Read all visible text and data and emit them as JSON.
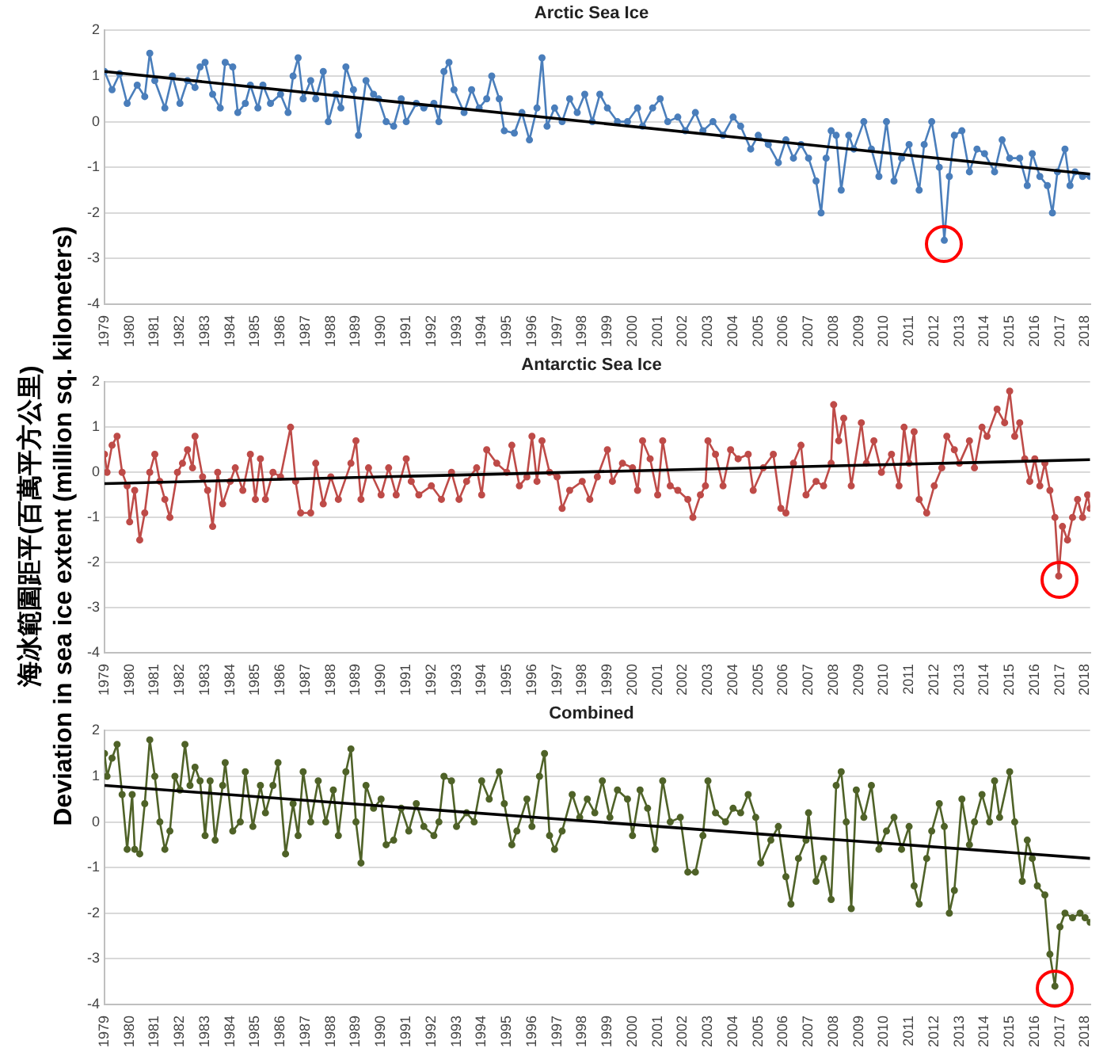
{
  "chart_data": [
    {
      "type": "line",
      "title": "Arctic Sea Ice",
      "ylabel": "海冰範圍距平(百萬平方公里)\nDeviation in sea ice extent (million sq. kilometers)",
      "xlim": [
        1979,
        2018.2
      ],
      "xticks": [
        1979,
        1980,
        1981,
        1982,
        1983,
        1984,
        1985,
        1986,
        1987,
        1988,
        1989,
        1990,
        1991,
        1992,
        1993,
        1994,
        1995,
        1996,
        1997,
        1998,
        1999,
        2000,
        2001,
        2002,
        2003,
        2004,
        2005,
        2006,
        2007,
        2008,
        2009,
        2010,
        2011,
        2012,
        2013,
        2014,
        2015,
        2016,
        2017,
        2018
      ],
      "ylim": [
        -4,
        2
      ],
      "yticks": [
        -4,
        -3,
        -2,
        -1,
        0,
        1,
        2
      ],
      "grid": "y",
      "marker": "circle",
      "series": [
        {
          "color": "#4a7ebb",
          "x": [
            1979.0,
            1979.3,
            1979.6,
            1979.9,
            1980.3,
            1980.6,
            1980.8,
            1981.0,
            1981.4,
            1981.7,
            1982.0,
            1982.3,
            1982.6,
            1982.8,
            1983.0,
            1983.3,
            1983.6,
            1983.8,
            1984.1,
            1984.3,
            1984.6,
            1984.8,
            1985.1,
            1985.3,
            1985.6,
            1986.0,
            1986.3,
            1986.5,
            1986.7,
            1986.9,
            1987.2,
            1987.4,
            1987.7,
            1987.9,
            1988.2,
            1988.4,
            1988.6,
            1988.9,
            1989.1,
            1989.4,
            1989.7,
            1989.9,
            1990.2,
            1990.5,
            1990.8,
            1991.0,
            1991.4,
            1991.7,
            1992.1,
            1992.3,
            1992.5,
            1992.7,
            1992.9,
            1993.3,
            1993.6,
            1993.9,
            1994.2,
            1994.4,
            1994.7,
            1994.9,
            1995.3,
            1995.6,
            1995.9,
            1996.2,
            1996.4,
            1996.6,
            1996.9,
            1997.2,
            1997.5,
            1997.8,
            1998.1,
            1998.4,
            1998.7,
            1999.0,
            1999.4,
            1999.8,
            2000.2,
            2000.4,
            2000.8,
            2001.1,
            2001.4,
            2001.8,
            2002.1,
            2002.5,
            2002.8,
            2003.2,
            2003.6,
            2004.0,
            2004.3,
            2004.7,
            2005.0,
            2005.4,
            2005.8,
            2006.1,
            2006.4,
            2006.7,
            2007.0,
            2007.3,
            2007.5,
            2007.7,
            2007.9,
            2008.1,
            2008.3,
            2008.6,
            2008.8,
            2009.2,
            2009.5,
            2009.8,
            2010.1,
            2010.4,
            2010.7,
            2011.0,
            2011.4,
            2011.6,
            2011.9,
            2012.2,
            2012.4,
            2012.6,
            2012.8,
            2013.1,
            2013.4,
            2013.7,
            2014.0,
            2014.4,
            2014.7,
            2015.0,
            2015.4,
            2015.7,
            2015.9,
            2016.2,
            2016.5,
            2016.7,
            2016.9,
            2017.2,
            2017.4,
            2017.6,
            2017.9,
            2018.2
          ],
          "values": [
            1.1,
            0.7,
            1.05,
            0.4,
            0.8,
            0.55,
            1.5,
            0.9,
            0.3,
            1.0,
            0.4,
            0.9,
            0.75,
            1.2,
            1.3,
            0.6,
            0.3,
            1.3,
            1.2,
            0.2,
            0.4,
            0.8,
            0.3,
            0.8,
            0.4,
            0.6,
            0.2,
            1.0,
            1.4,
            0.5,
            0.9,
            0.5,
            1.1,
            0.0,
            0.6,
            0.3,
            1.2,
            0.7,
            -0.3,
            0.9,
            0.6,
            0.5,
            0.0,
            -0.1,
            0.5,
            0.0,
            0.4,
            0.3,
            0.4,
            0.0,
            1.1,
            1.3,
            0.7,
            0.2,
            0.7,
            0.3,
            0.5,
            1.0,
            0.5,
            -0.2,
            -0.25,
            0.2,
            -0.4,
            0.3,
            1.4,
            -0.1,
            0.3,
            0.0,
            0.5,
            0.2,
            0.6,
            0.0,
            0.6,
            0.3,
            0.0,
            0.0,
            0.3,
            -0.1,
            0.3,
            0.5,
            0.0,
            0.1,
            -0.2,
            0.2,
            -0.2,
            0.0,
            -0.3,
            0.1,
            -0.1,
            -0.6,
            -0.3,
            -0.5,
            -0.9,
            -0.4,
            -0.8,
            -0.5,
            -0.8,
            -1.3,
            -2.0,
            -0.8,
            -0.2,
            -0.3,
            -1.5,
            -0.3,
            -0.6,
            0.0,
            -0.6,
            -1.2,
            0.0,
            -1.3,
            -0.8,
            -0.5,
            -1.5,
            -0.5,
            0.0,
            -1.0,
            -2.6,
            -1.2,
            -0.3,
            -0.2,
            -1.1,
            -0.6,
            -0.7,
            -1.1,
            -0.4,
            -0.8,
            -0.8,
            -1.4,
            -0.7,
            -1.2,
            -1.4,
            -2.0,
            -1.1,
            -0.6,
            -1.4,
            -1.1,
            -1.2,
            -1.2
          ]
        },
        {
          "type": "line",
          "color": "#000000",
          "marker": "none",
          "x": [
            1979,
            2018.2
          ],
          "values": [
            1.1,
            -1.15
          ]
        }
      ]
    },
    {
      "type": "line",
      "title": "Antarctic Sea Ice",
      "xlim": [
        1979,
        2018.2
      ],
      "xticks": [
        1979,
        1980,
        1981,
        1982,
        1983,
        1984,
        1985,
        1986,
        1987,
        1988,
        1989,
        1990,
        1991,
        1992,
        1993,
        1994,
        1995,
        1996,
        1997,
        1998,
        1999,
        2000,
        2001,
        2002,
        2003,
        2004,
        2005,
        2006,
        2007,
        2008,
        2009,
        2010,
        2011,
        2012,
        2013,
        2014,
        2015,
        2016,
        2017,
        2018
      ],
      "ylim": [
        -4,
        2
      ],
      "yticks": [
        -4,
        -3,
        -2,
        -1,
        0,
        1,
        2
      ],
      "grid": "y",
      "marker": "circle",
      "series": [
        {
          "color": "#be4b48",
          "x": [
            1979.0,
            1979.1,
            1979.3,
            1979.5,
            1979.7,
            1979.9,
            1980.0,
            1980.2,
            1980.4,
            1980.6,
            1980.8,
            1981.0,
            1981.2,
            1981.4,
            1981.6,
            1981.9,
            1982.1,
            1982.3,
            1982.5,
            1982.6,
            1982.9,
            1983.1,
            1983.3,
            1983.5,
            1983.7,
            1984.0,
            1984.2,
            1984.5,
            1984.8,
            1985.0,
            1985.2,
            1985.4,
            1985.7,
            1986.0,
            1986.4,
            1986.6,
            1986.8,
            1987.2,
            1987.4,
            1987.7,
            1988.0,
            1988.3,
            1988.8,
            1989.0,
            1989.2,
            1989.5,
            1990.0,
            1990.3,
            1990.6,
            1991.0,
            1991.2,
            1991.5,
            1992.0,
            1992.4,
            1992.8,
            1993.1,
            1993.4,
            1993.8,
            1994.0,
            1994.2,
            1994.6,
            1995.0,
            1995.2,
            1995.5,
            1995.8,
            1996.0,
            1996.2,
            1996.4,
            1996.7,
            1997.0,
            1997.2,
            1997.5,
            1998.0,
            1998.3,
            1998.6,
            1999.0,
            1999.2,
            1999.6,
            2000.0,
            2000.2,
            2000.4,
            2000.7,
            2001.0,
            2001.2,
            2001.5,
            2001.8,
            2002.2,
            2002.4,
            2002.7,
            2002.9,
            2003.0,
            2003.3,
            2003.6,
            2003.9,
            2004.2,
            2004.6,
            2004.8,
            2005.2,
            2005.6,
            2005.9,
            2006.1,
            2006.4,
            2006.7,
            2006.9,
            2007.3,
            2007.6,
            2007.9,
            2008.0,
            2008.2,
            2008.4,
            2008.7,
            2009.1,
            2009.3,
            2009.6,
            2009.9,
            2010.3,
            2010.6,
            2010.8,
            2011.0,
            2011.2,
            2011.4,
            2011.7,
            2012.0,
            2012.3,
            2012.5,
            2012.8,
            2013.0,
            2013.4,
            2013.6,
            2013.9,
            2014.1,
            2014.5,
            2014.8,
            2015.0,
            2015.2,
            2015.4,
            2015.6,
            2015.8,
            2016.0,
            2016.2,
            2016.4,
            2016.6,
            2016.8,
            2016.95,
            2017.1,
            2017.3,
            2017.5,
            2017.7,
            2017.9,
            2018.1,
            2018.2
          ],
          "values": [
            0.4,
            0.0,
            0.6,
            0.8,
            0.0,
            -0.3,
            -1.1,
            -0.4,
            -1.5,
            -0.9,
            0.0,
            0.4,
            -0.2,
            -0.6,
            -1.0,
            0.0,
            0.2,
            0.5,
            0.1,
            0.8,
            -0.1,
            -0.4,
            -1.2,
            0.0,
            -0.7,
            -0.2,
            0.1,
            -0.4,
            0.4,
            -0.6,
            0.3,
            -0.6,
            0.0,
            -0.1,
            1.0,
            -0.2,
            -0.9,
            -0.9,
            0.2,
            -0.7,
            -0.1,
            -0.6,
            0.2,
            0.7,
            -0.6,
            0.1,
            -0.5,
            0.1,
            -0.5,
            0.3,
            -0.2,
            -0.5,
            -0.3,
            -0.6,
            0.0,
            -0.6,
            -0.2,
            0.1,
            -0.5,
            0.5,
            0.2,
            0.0,
            0.6,
            -0.3,
            -0.1,
            0.8,
            -0.2,
            0.7,
            0.0,
            -0.1,
            -0.8,
            -0.4,
            -0.2,
            -0.6,
            -0.1,
            0.5,
            -0.2,
            0.2,
            0.1,
            -0.4,
            0.7,
            0.3,
            -0.5,
            0.7,
            -0.3,
            -0.4,
            -0.6,
            -1.0,
            -0.5,
            -0.3,
            0.7,
            0.4,
            -0.3,
            0.5,
            0.3,
            0.4,
            -0.4,
            0.1,
            0.4,
            -0.8,
            -0.9,
            0.2,
            0.6,
            -0.5,
            -0.2,
            -0.3,
            0.2,
            1.5,
            0.7,
            1.2,
            -0.3,
            1.1,
            0.2,
            0.7,
            0.0,
            0.4,
            -0.3,
            1.0,
            0.2,
            0.9,
            -0.6,
            -0.9,
            -0.3,
            0.1,
            0.8,
            0.5,
            0.2,
            0.7,
            0.1,
            1.0,
            0.8,
            1.4,
            1.1,
            1.8,
            0.8,
            1.1,
            0.3,
            -0.2,
            0.3,
            -0.3,
            0.2,
            -0.4,
            -1.0,
            -2.3,
            -1.2,
            -1.5,
            -1.0,
            -0.6,
            -1.0,
            -0.5,
            -0.8
          ]
        },
        {
          "type": "line",
          "color": "#000000",
          "marker": "none",
          "x": [
            1979,
            2018.2
          ],
          "values": [
            -0.25,
            0.28
          ]
        }
      ]
    },
    {
      "type": "line",
      "title": "Combined",
      "xlim": [
        1979,
        2018.2
      ],
      "xticks": [
        1979,
        1980,
        1981,
        1982,
        1983,
        1984,
        1985,
        1986,
        1987,
        1988,
        1989,
        1990,
        1991,
        1992,
        1993,
        1994,
        1995,
        1996,
        1997,
        1998,
        1999,
        2000,
        2001,
        2002,
        2003,
        2004,
        2005,
        2006,
        2007,
        2008,
        2009,
        2010,
        2011,
        2012,
        2013,
        2014,
        2015,
        2016,
        2017,
        2018
      ],
      "ylim": [
        -4,
        2
      ],
      "yticks": [
        -4,
        -3,
        -2,
        -1,
        0,
        1,
        2
      ],
      "grid": "y",
      "marker": "circle",
      "series": [
        {
          "color": "#4f6228",
          "x": [
            1979.0,
            1979.1,
            1979.3,
            1979.5,
            1979.7,
            1979.9,
            1980.1,
            1980.2,
            1980.4,
            1980.6,
            1980.8,
            1981.0,
            1981.2,
            1981.4,
            1981.6,
            1981.8,
            1982.0,
            1982.2,
            1982.4,
            1982.6,
            1982.8,
            1983.0,
            1983.2,
            1983.4,
            1983.7,
            1983.8,
            1984.1,
            1984.4,
            1984.6,
            1984.9,
            1985.2,
            1985.4,
            1985.7,
            1985.9,
            1986.2,
            1986.5,
            1986.7,
            1986.9,
            1987.2,
            1987.5,
            1987.8,
            1988.1,
            1988.3,
            1988.6,
            1988.8,
            1989.0,
            1989.2,
            1989.4,
            1989.7,
            1990.0,
            1990.2,
            1990.5,
            1990.8,
            1991.1,
            1991.4,
            1991.7,
            1992.1,
            1992.3,
            1992.5,
            1992.8,
            1993.0,
            1993.4,
            1993.7,
            1994.0,
            1994.3,
            1994.7,
            1994.9,
            1995.2,
            1995.4,
            1995.8,
            1996.0,
            1996.3,
            1996.5,
            1996.7,
            1996.9,
            1997.2,
            1997.6,
            1997.9,
            1998.2,
            1998.5,
            1998.8,
            1999.1,
            1999.4,
            1999.8,
            2000.0,
            2000.3,
            2000.6,
            2000.9,
            2001.2,
            2001.5,
            2001.9,
            2002.2,
            2002.5,
            2002.8,
            2003.0,
            2003.3,
            2003.7,
            2004.0,
            2004.3,
            2004.6,
            2004.9,
            2005.1,
            2005.5,
            2005.8,
            2006.1,
            2006.3,
            2006.6,
            2006.9,
            2007.0,
            2007.3,
            2007.6,
            2007.9,
            2008.1,
            2008.3,
            2008.5,
            2008.7,
            2008.9,
            2009.2,
            2009.5,
            2009.8,
            2010.1,
            2010.4,
            2010.7,
            2011.0,
            2011.2,
            2011.4,
            2011.7,
            2011.9,
            2012.2,
            2012.4,
            2012.6,
            2012.8,
            2013.1,
            2013.4,
            2013.6,
            2013.9,
            2014.2,
            2014.4,
            2014.6,
            2015.0,
            2015.2,
            2015.5,
            2015.7,
            2015.9,
            2016.1,
            2016.4,
            2016.6,
            2016.8,
            2017.0,
            2017.2,
            2017.5,
            2017.8,
            2018.0,
            2018.2
          ],
          "values": [
            1.5,
            1.0,
            1.4,
            1.7,
            0.6,
            -0.6,
            0.6,
            -0.6,
            -0.7,
            0.4,
            1.8,
            1.0,
            0.0,
            -0.6,
            -0.2,
            1.0,
            0.7,
            1.7,
            0.8,
            1.2,
            0.9,
            -0.3,
            0.9,
            -0.4,
            0.8,
            1.3,
            -0.2,
            0.0,
            1.1,
            -0.1,
            0.8,
            0.2,
            0.8,
            1.3,
            -0.7,
            0.4,
            -0.3,
            1.1,
            0.0,
            0.9,
            0.0,
            0.7,
            -0.3,
            1.1,
            1.6,
            0.0,
            -0.9,
            0.8,
            0.3,
            0.5,
            -0.5,
            -0.4,
            0.3,
            -0.2,
            0.4,
            -0.1,
            -0.3,
            0.0,
            1.0,
            0.9,
            -0.1,
            0.2,
            0.0,
            0.9,
            0.5,
            1.1,
            0.4,
            -0.5,
            -0.2,
            0.5,
            -0.1,
            1.0,
            1.5,
            -0.3,
            -0.6,
            -0.2,
            0.6,
            0.1,
            0.5,
            0.2,
            0.9,
            0.1,
            0.7,
            0.5,
            -0.3,
            0.7,
            0.3,
            -0.6,
            0.9,
            0.0,
            0.1,
            -1.1,
            -1.1,
            -0.3,
            0.9,
            0.2,
            0.0,
            0.3,
            0.2,
            0.6,
            0.1,
            -0.9,
            -0.4,
            -0.1,
            -1.2,
            -1.8,
            -0.8,
            -0.4,
            0.2,
            -1.3,
            -0.8,
            -1.7,
            0.8,
            1.1,
            0.0,
            -1.9,
            0.7,
            0.1,
            0.8,
            -0.6,
            -0.2,
            0.1,
            -0.6,
            -0.1,
            -1.4,
            -1.8,
            -0.8,
            -0.2,
            0.4,
            -0.1,
            -2.0,
            -1.5,
            0.5,
            -0.5,
            0.0,
            0.6,
            0.0,
            0.9,
            0.1,
            1.1,
            0.0,
            -1.3,
            -0.4,
            -0.8,
            -1.4,
            -1.6,
            -2.9,
            -3.6,
            -2.3,
            -2.0,
            -2.1,
            -2.0,
            -2.1,
            -2.2
          ]
        },
        {
          "type": "line",
          "color": "#000000",
          "marker": "none",
          "x": [
            1979,
            2018.2
          ],
          "values": [
            0.8,
            -0.8
          ]
        }
      ]
    }
  ]
}
